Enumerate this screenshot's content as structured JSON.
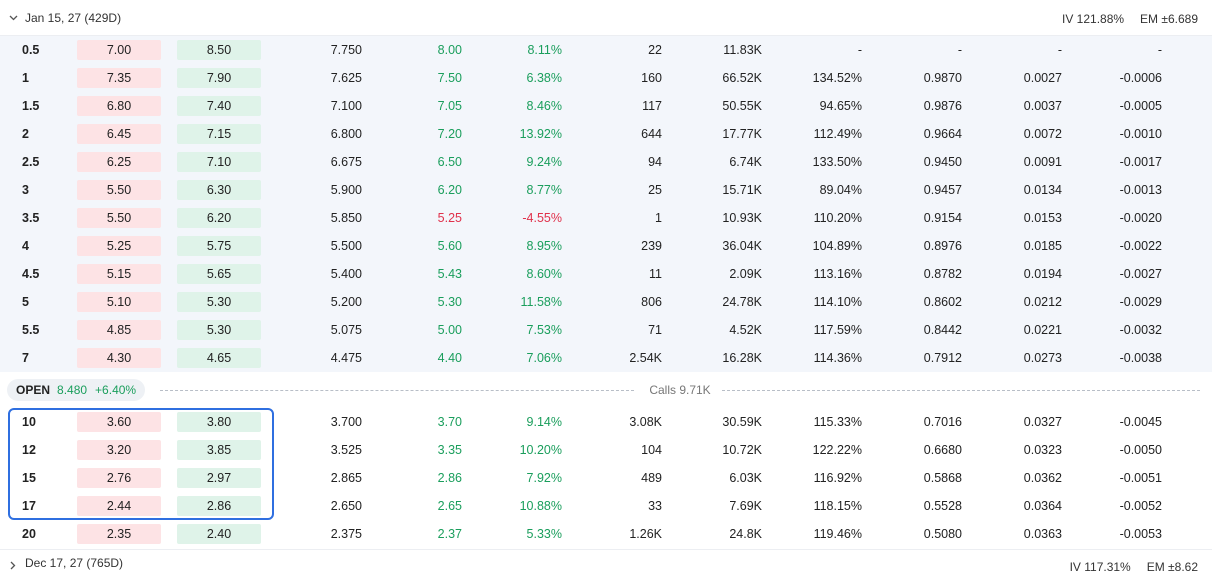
{
  "top_expiry": {
    "label": "Jan 15, 27 (429D)",
    "iv": "IV 121.88%",
    "em": "EM ±6.689"
  },
  "bottom_expiry": {
    "label": "Dec 17, 27 (765D)",
    "iv": "IV 117.31%",
    "em": "EM ±8.62"
  },
  "open_bar": {
    "label": "OPEN",
    "price": "8.480",
    "change": "+6.40%",
    "calls": "Calls 9.71K"
  },
  "colors": {
    "positive": "#1a9e5c",
    "negative": "#e0314b",
    "bid_bg": "#fde3e5",
    "ask_bg": "#dff3e9",
    "highlight": "#2f6fe0"
  },
  "itm_rows": [
    {
      "strike": "0.5",
      "bid": "7.00",
      "ask": "8.50",
      "mark": "7.750",
      "last": "8.00",
      "change": "8.11%",
      "volume": "22",
      "oi": "11.83K",
      "iv": "-",
      "delta": "-",
      "gamma": "-",
      "theta": "-"
    },
    {
      "strike": "1",
      "bid": "7.35",
      "ask": "7.90",
      "mark": "7.625",
      "last": "7.50",
      "change": "6.38%",
      "volume": "160",
      "oi": "66.52K",
      "iv": "134.52%",
      "delta": "0.9870",
      "gamma": "0.0027",
      "theta": "-0.0006"
    },
    {
      "strike": "1.5",
      "bid": "6.80",
      "ask": "7.40",
      "mark": "7.100",
      "last": "7.05",
      "change": "8.46%",
      "volume": "117",
      "oi": "50.55K",
      "iv": "94.65%",
      "delta": "0.9876",
      "gamma": "0.0037",
      "theta": "-0.0005"
    },
    {
      "strike": "2",
      "bid": "6.45",
      "ask": "7.15",
      "mark": "6.800",
      "last": "7.20",
      "change": "13.92%",
      "volume": "644",
      "oi": "17.77K",
      "iv": "112.49%",
      "delta": "0.9664",
      "gamma": "0.0072",
      "theta": "-0.0010"
    },
    {
      "strike": "2.5",
      "bid": "6.25",
      "ask": "7.10",
      "mark": "6.675",
      "last": "6.50",
      "change": "9.24%",
      "volume": "94",
      "oi": "6.74K",
      "iv": "133.50%",
      "delta": "0.9450",
      "gamma": "0.0091",
      "theta": "-0.0017"
    },
    {
      "strike": "3",
      "bid": "5.50",
      "ask": "6.30",
      "mark": "5.900",
      "last": "6.20",
      "change": "8.77%",
      "volume": "25",
      "oi": "15.71K",
      "iv": "89.04%",
      "delta": "0.9457",
      "gamma": "0.0134",
      "theta": "-0.0013"
    },
    {
      "strike": "3.5",
      "bid": "5.50",
      "ask": "6.20",
      "mark": "5.850",
      "last": "5.25",
      "change": "-4.55%",
      "volume": "1",
      "oi": "10.93K",
      "iv": "110.20%",
      "delta": "0.9154",
      "gamma": "0.0153",
      "theta": "-0.0020"
    },
    {
      "strike": "4",
      "bid": "5.25",
      "ask": "5.75",
      "mark": "5.500",
      "last": "5.60",
      "change": "8.95%",
      "volume": "239",
      "oi": "36.04K",
      "iv": "104.89%",
      "delta": "0.8976",
      "gamma": "0.0185",
      "theta": "-0.0022"
    },
    {
      "strike": "4.5",
      "bid": "5.15",
      "ask": "5.65",
      "mark": "5.400",
      "last": "5.43",
      "change": "8.60%",
      "volume": "11",
      "oi": "2.09K",
      "iv": "113.16%",
      "delta": "0.8782",
      "gamma": "0.0194",
      "theta": "-0.0027"
    },
    {
      "strike": "5",
      "bid": "5.10",
      "ask": "5.30",
      "mark": "5.200",
      "last": "5.30",
      "change": "11.58%",
      "volume": "806",
      "oi": "24.78K",
      "iv": "114.10%",
      "delta": "0.8602",
      "gamma": "0.0212",
      "theta": "-0.0029"
    },
    {
      "strike": "5.5",
      "bid": "4.85",
      "ask": "5.30",
      "mark": "5.075",
      "last": "5.00",
      "change": "7.53%",
      "volume": "71",
      "oi": "4.52K",
      "iv": "117.59%",
      "delta": "0.8442",
      "gamma": "0.0221",
      "theta": "-0.0032"
    },
    {
      "strike": "7",
      "bid": "4.30",
      "ask": "4.65",
      "mark": "4.475",
      "last": "4.40",
      "change": "7.06%",
      "volume": "2.54K",
      "oi": "16.28K",
      "iv": "114.36%",
      "delta": "0.7912",
      "gamma": "0.0273",
      "theta": "-0.0038"
    }
  ],
  "otm_rows": [
    {
      "strike": "10",
      "bid": "3.60",
      "ask": "3.80",
      "mark": "3.700",
      "last": "3.70",
      "change": "9.14%",
      "volume": "3.08K",
      "oi": "30.59K",
      "iv": "115.33%",
      "delta": "0.7016",
      "gamma": "0.0327",
      "theta": "-0.0045"
    },
    {
      "strike": "12",
      "bid": "3.20",
      "ask": "3.85",
      "mark": "3.525",
      "last": "3.35",
      "change": "10.20%",
      "volume": "104",
      "oi": "10.72K",
      "iv": "122.22%",
      "delta": "0.6680",
      "gamma": "0.0323",
      "theta": "-0.0050"
    },
    {
      "strike": "15",
      "bid": "2.76",
      "ask": "2.97",
      "mark": "2.865",
      "last": "2.86",
      "change": "7.92%",
      "volume": "489",
      "oi": "6.03K",
      "iv": "116.92%",
      "delta": "0.5868",
      "gamma": "0.0362",
      "theta": "-0.0051"
    },
    {
      "strike": "17",
      "bid": "2.44",
      "ask": "2.86",
      "mark": "2.650",
      "last": "2.65",
      "change": "10.88%",
      "volume": "33",
      "oi": "7.69K",
      "iv": "118.15%",
      "delta": "0.5528",
      "gamma": "0.0364",
      "theta": "-0.0052"
    },
    {
      "strike": "20",
      "bid": "2.35",
      "ask": "2.40",
      "mark": "2.375",
      "last": "2.37",
      "change": "5.33%",
      "volume": "1.26K",
      "oi": "24.8K",
      "iv": "119.46%",
      "delta": "0.5080",
      "gamma": "0.0363",
      "theta": "-0.0053"
    }
  ]
}
